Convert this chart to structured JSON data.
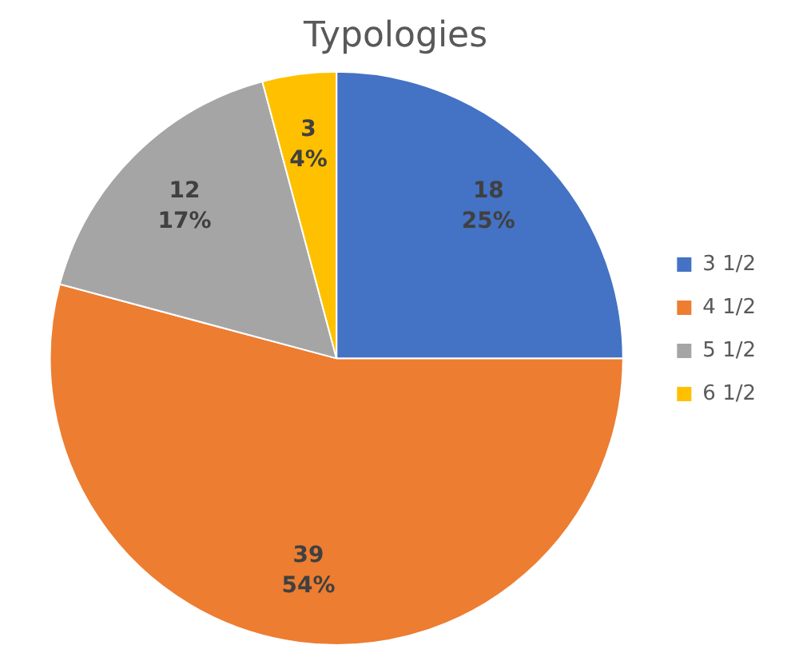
{
  "chart_data": {
    "type": "pie",
    "title": "Typologies",
    "categories": [
      "3 1/2",
      "4 1/2",
      "5 1/2",
      "6 1/2"
    ],
    "values": [
      18,
      39,
      12,
      3
    ],
    "colors": [
      "#4472c4",
      "#ed7d31",
      "#a5a5a5",
      "#ffc000"
    ],
    "value_labels": [
      "18\n25%",
      "39\n54%",
      "12\n17%",
      "3\n4%"
    ],
    "legend": "right"
  }
}
